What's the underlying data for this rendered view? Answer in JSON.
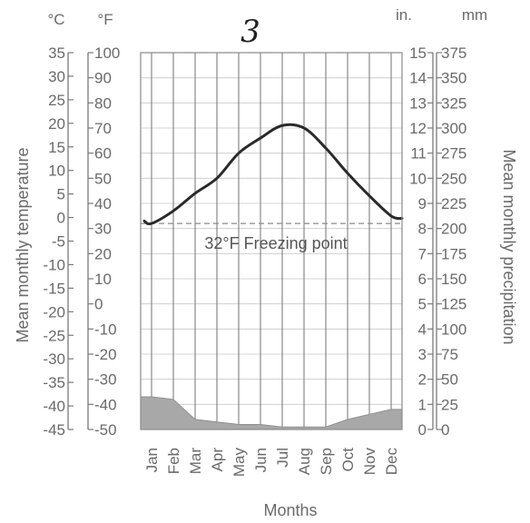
{
  "handwritten_note": "3",
  "units": {
    "celsius": "°C",
    "fahrenheit": "°F",
    "inches": "in.",
    "millimeters": "mm"
  },
  "chart_data": {
    "type": "line",
    "title": "",
    "xlabel": "Months",
    "ylabel_left": "Mean monthly temperature",
    "ylabel_right": "Mean monthly precipitation",
    "categories": [
      "Jan",
      "Feb",
      "Mar",
      "Apr",
      "May",
      "Jun",
      "Jul",
      "Aug",
      "Sep",
      "Oct",
      "Nov",
      "Dec"
    ],
    "axes": {
      "celsius": {
        "range": [
          -45,
          35
        ],
        "ticks": [
          35,
          30,
          25,
          20,
          15,
          10,
          5,
          0,
          -5,
          -10,
          -15,
          -20,
          -25,
          -30,
          -35,
          -40,
          -45
        ]
      },
      "fahrenheit": {
        "range": [
          -50,
          100
        ],
        "ticks": [
          100,
          90,
          80,
          70,
          60,
          50,
          40,
          30,
          20,
          10,
          0,
          -10,
          -20,
          -30,
          -40,
          -50
        ]
      },
      "inches": {
        "range": [
          0,
          15
        ],
        "ticks": [
          15,
          14,
          13,
          12,
          11,
          10,
          9,
          8,
          7,
          6,
          5,
          4,
          3,
          2,
          1,
          0
        ]
      },
      "millimeters": {
        "range": [
          0,
          375
        ],
        "ticks": [
          375,
          350,
          325,
          300,
          275,
          250,
          225,
          200,
          175,
          150,
          125,
          100,
          75,
          50,
          25,
          0
        ]
      }
    },
    "series": [
      {
        "type": "line",
        "axis": "fahrenheit",
        "values": [
          32,
          37,
          44,
          50,
          60,
          66,
          71,
          70,
          62,
          52,
          43,
          35
        ]
      },
      {
        "type": "area",
        "axis": "inches",
        "values": [
          1.3,
          1.2,
          0.4,
          0.3,
          0.2,
          0.2,
          0.1,
          0.1,
          0.1,
          0.4,
          0.6,
          0.8
        ]
      }
    ],
    "reference_line": {
      "label": "32°F Freezing point",
      "value_f": 32
    },
    "grid": true
  }
}
